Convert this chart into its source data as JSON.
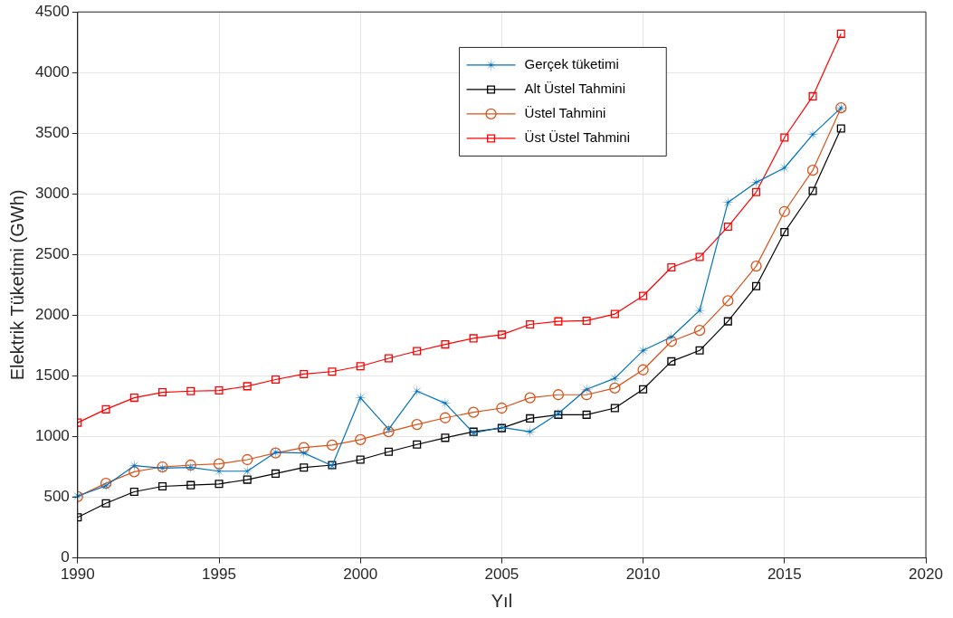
{
  "chart_data": {
    "type": "line",
    "xlabel": "Yıl",
    "ylabel": "Elektrik Tüketimi (GWh)",
    "x": [
      1990,
      1991,
      1992,
      1993,
      1994,
      1995,
      1996,
      1997,
      1998,
      1999,
      2000,
      2001,
      2002,
      2003,
      2004,
      2005,
      2006,
      2007,
      2008,
      2009,
      2010,
      2011,
      2012,
      2013,
      2014,
      2015,
      2016,
      2017
    ],
    "series": [
      {
        "name": "Gerçek tüketimi",
        "color": "#0072bd",
        "marker": "star",
        "values": [
          510,
          595,
          760,
          740,
          745,
          715,
          715,
          870,
          865,
          760,
          1320,
          1060,
          1375,
          1275,
          1030,
          1075,
          1040,
          1190,
          1390,
          1480,
          1710,
          1820,
          2040,
          2930,
          3095,
          3215,
          3490,
          3710
        ]
      },
      {
        "name": "Alt Üstel Tahmini",
        "color": "#000000",
        "marker": "square",
        "values": [
          335,
          450,
          545,
          590,
          600,
          610,
          645,
          695,
          745,
          765,
          810,
          875,
          935,
          990,
          1040,
          1070,
          1150,
          1180,
          1180,
          1235,
          1390,
          1620,
          1710,
          1950,
          2240,
          2685,
          3025,
          3540
        ]
      },
      {
        "name": "Üstel Tahmini",
        "color": "#d95319",
        "marker": "circle",
        "values": [
          505,
          615,
          710,
          750,
          765,
          775,
          810,
          865,
          910,
          930,
          975,
          1040,
          1100,
          1155,
          1200,
          1235,
          1320,
          1345,
          1345,
          1400,
          1550,
          1785,
          1875,
          2120,
          2405,
          2855,
          3195,
          3710
        ]
      },
      {
        "name": "Üst Üstel Tahmini",
        "color": "#ff0000",
        "marker": "square",
        "values": [
          1115,
          1225,
          1320,
          1365,
          1375,
          1380,
          1415,
          1470,
          1515,
          1535,
          1580,
          1645,
          1705,
          1760,
          1810,
          1840,
          1925,
          1950,
          1955,
          2010,
          2160,
          2395,
          2480,
          2730,
          3015,
          3465,
          3805,
          4320
        ]
      }
    ],
    "xlim": [
      1990,
      2020
    ],
    "xticks": [
      1990,
      1995,
      2000,
      2005,
      2010,
      2015,
      2020
    ],
    "ylim": [
      0,
      4500
    ],
    "yticks": [
      0,
      500,
      1000,
      1500,
      2000,
      2500,
      3000,
      3500,
      4000,
      4500
    ],
    "grid": true,
    "legend": "top",
    "line_style": "solid"
  }
}
